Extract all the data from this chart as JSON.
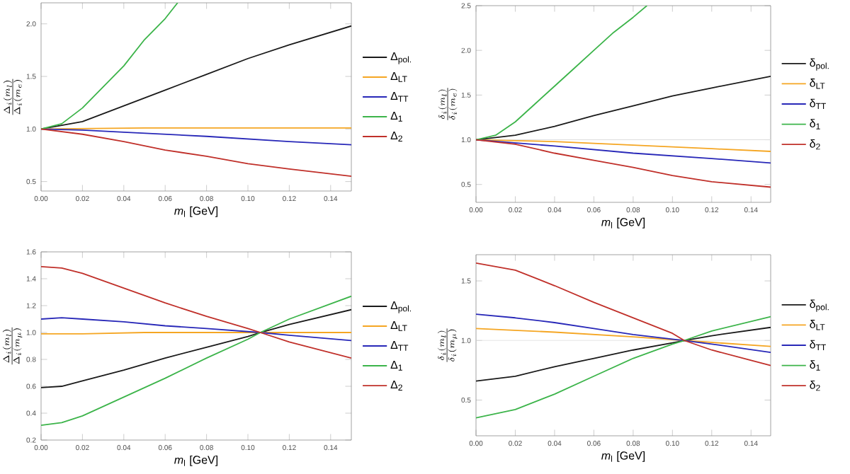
{
  "chart_data": [
    {
      "type": "line",
      "xlabel": "*m*$_{l}$ [GeV]",
      "ylabel": "\\frac{\\Delta_i(m_l)}{\\Delta_i(m_e)}",
      "legend": "right",
      "grid": false,
      "marker": "none",
      "line_style": "solid",
      "xlim": [
        0,
        0.15
      ],
      "ylim": [
        0.41,
        2.2
      ],
      "xticks": [
        {
          "value": 0,
          "label": "0.00"
        },
        {
          "value": 0.02,
          "label": "0.02"
        },
        {
          "value": 0.04,
          "label": "0.04"
        },
        {
          "value": 0.06,
          "label": "0.06"
        },
        {
          "value": 0.08,
          "label": "0.08"
        },
        {
          "value": 0.1,
          "label": "0.10"
        },
        {
          "value": 0.12,
          "label": "0.12"
        },
        {
          "value": 0.14,
          "label": "0.14"
        }
      ],
      "yticks": [
        {
          "value": 0.5,
          "label": "0.5"
        },
        {
          "value": 1,
          "label": "1.0"
        },
        {
          "value": 1.5,
          "label": "1.5"
        },
        {
          "value": 2,
          "label": "2.0"
        }
      ],
      "series": [
        {
          "name": "Δ$_{pol.}$",
          "color": "#1a1a1a",
          "x": [
            0,
            0.02,
            0.04,
            0.06,
            0.08,
            0.1,
            0.12,
            0.15
          ],
          "values": [
            1.0,
            1.07,
            1.22,
            1.37,
            1.52,
            1.67,
            1.8,
            1.98
          ]
        },
        {
          "name": "Δ$_{LT}$",
          "color": "#f5a623",
          "x": [
            0,
            0.05,
            0.1,
            0.15
          ],
          "values": [
            1.0,
            1.01,
            1.01,
            1.01
          ]
        },
        {
          "name": "Δ$_{TT}$",
          "color": "#2828b8",
          "x": [
            0,
            0.02,
            0.04,
            0.08,
            0.12,
            0.15
          ],
          "values": [
            1.0,
            0.99,
            0.97,
            0.93,
            0.88,
            0.85
          ]
        },
        {
          "name": "Δ$_{1}$",
          "color": "#3cb44a",
          "x": [
            0,
            0.01,
            0.02,
            0.03,
            0.04,
            0.05,
            0.06,
            0.066
          ],
          "values": [
            1.0,
            1.05,
            1.2,
            1.4,
            1.6,
            1.85,
            2.05,
            2.2
          ]
        },
        {
          "name": "Δ$_{2}$",
          "color": "#c0302a",
          "x": [
            0,
            0.02,
            0.04,
            0.06,
            0.08,
            0.1,
            0.12,
            0.15
          ],
          "values": [
            1.0,
            0.95,
            0.88,
            0.8,
            0.74,
            0.67,
            0.62,
            0.55
          ]
        }
      ]
    },
    {
      "type": "line",
      "xlabel": "*m*$_{l}$ [GeV]",
      "ylabel": "\\frac{\\delta_i(m_l)}{\\delta_i(m_e)}",
      "legend": "right",
      "grid": false,
      "marker": "none",
      "line_style": "solid",
      "xlim": [
        0,
        0.15
      ],
      "ylim": [
        0.3,
        2.5
      ],
      "xticks": [
        {
          "value": 0,
          "label": "0.00"
        },
        {
          "value": 0.02,
          "label": "0.02"
        },
        {
          "value": 0.04,
          "label": "0.04"
        },
        {
          "value": 0.06,
          "label": "0.06"
        },
        {
          "value": 0.08,
          "label": "0.08"
        },
        {
          "value": 0.1,
          "label": "0.10"
        },
        {
          "value": 0.12,
          "label": "0.12"
        },
        {
          "value": 0.14,
          "label": "0.14"
        }
      ],
      "yticks": [
        {
          "value": 0.5,
          "label": "0.5"
        },
        {
          "value": 1,
          "label": "1.0"
        },
        {
          "value": 1.5,
          "label": "1.5"
        },
        {
          "value": 2,
          "label": "2.0"
        },
        {
          "value": 2.5,
          "label": "2.5"
        }
      ],
      "ref_lines": [
        {
          "axis": "y",
          "value": 1,
          "color": "#dddddd"
        }
      ],
      "series": [
        {
          "name": "δ$_{pol.}$",
          "color": "#1a1a1a",
          "x": [
            0,
            0.02,
            0.04,
            0.06,
            0.08,
            0.1,
            0.12,
            0.15
          ],
          "values": [
            1.0,
            1.05,
            1.15,
            1.27,
            1.38,
            1.49,
            1.58,
            1.71
          ]
        },
        {
          "name": "δ$_{LT}$",
          "color": "#f5a623",
          "x": [
            0,
            0.04,
            0.08,
            0.12,
            0.15
          ],
          "values": [
            1.0,
            0.98,
            0.94,
            0.9,
            0.87
          ]
        },
        {
          "name": "δ$_{TT}$",
          "color": "#2828b8",
          "x": [
            0,
            0.04,
            0.08,
            0.12,
            0.15
          ],
          "values": [
            1.0,
            0.93,
            0.85,
            0.79,
            0.74
          ]
        },
        {
          "name": "δ$_{1}$",
          "color": "#3cb44a",
          "x": [
            0,
            0.01,
            0.02,
            0.03,
            0.04,
            0.05,
            0.06,
            0.07,
            0.08,
            0.087
          ],
          "values": [
            1.0,
            1.05,
            1.2,
            1.4,
            1.6,
            1.8,
            2.0,
            2.2,
            2.37,
            2.5
          ]
        },
        {
          "name": "δ$_{2}$",
          "color": "#c0302a",
          "x": [
            0,
            0.02,
            0.04,
            0.06,
            0.08,
            0.1,
            0.12,
            0.15
          ],
          "values": [
            1.0,
            0.95,
            0.85,
            0.77,
            0.69,
            0.6,
            0.53,
            0.47
          ]
        }
      ]
    },
    {
      "type": "line",
      "xlabel": "*m*$_{l}$ [GeV]",
      "ylabel": "\\frac{\\Delta_i(m_l)}{\\Delta_i(m_\\mu)}",
      "legend": "right",
      "grid": false,
      "marker": "none",
      "line_style": "solid",
      "xlim": [
        0,
        0.15
      ],
      "ylim": [
        0.2,
        1.6
      ],
      "xticks": [
        {
          "value": 0,
          "label": "0.00"
        },
        {
          "value": 0.02,
          "label": "0.02"
        },
        {
          "value": 0.04,
          "label": "0.04"
        },
        {
          "value": 0.06,
          "label": "0.06"
        },
        {
          "value": 0.08,
          "label": "0.08"
        },
        {
          "value": 0.1,
          "label": "0.10"
        },
        {
          "value": 0.12,
          "label": "0.12"
        },
        {
          "value": 0.14,
          "label": "0.14"
        }
      ],
      "yticks": [
        0.2,
        0.4,
        0.6,
        0.8,
        {
          "value": 1,
          "label": "1.0"
        },
        1.2,
        1.4,
        1.6
      ],
      "series": [
        {
          "name": "Δ$_{pol.}$",
          "color": "#1a1a1a",
          "x": [
            0,
            0.01,
            0.02,
            0.04,
            0.06,
            0.08,
            0.1,
            0.106,
            0.12,
            0.15
          ],
          "values": [
            0.59,
            0.6,
            0.64,
            0.72,
            0.81,
            0.89,
            0.97,
            1.0,
            1.06,
            1.17
          ]
        },
        {
          "name": "Δ$_{LT}$",
          "color": "#f5a623",
          "x": [
            0,
            0.02,
            0.05,
            0.106,
            0.15
          ],
          "values": [
            0.99,
            0.99,
            1.0,
            1.0,
            1.0
          ]
        },
        {
          "name": "Δ$_{TT}$",
          "color": "#2828b8",
          "x": [
            0,
            0.01,
            0.02,
            0.04,
            0.06,
            0.08,
            0.106,
            0.12,
            0.15
          ],
          "values": [
            1.1,
            1.11,
            1.1,
            1.08,
            1.05,
            1.03,
            1.0,
            0.98,
            0.94
          ]
        },
        {
          "name": "Δ$_{1}$",
          "color": "#3cb44a",
          "x": [
            0,
            0.01,
            0.02,
            0.04,
            0.06,
            0.08,
            0.1,
            0.106,
            0.12,
            0.15
          ],
          "values": [
            0.31,
            0.33,
            0.38,
            0.52,
            0.66,
            0.81,
            0.95,
            1.0,
            1.1,
            1.27
          ]
        },
        {
          "name": "Δ$_{2}$",
          "color": "#c0302a",
          "x": [
            0,
            0.01,
            0.02,
            0.04,
            0.06,
            0.08,
            0.1,
            0.106,
            0.12,
            0.15
          ],
          "values": [
            1.49,
            1.48,
            1.44,
            1.33,
            1.22,
            1.12,
            1.03,
            1.0,
            0.93,
            0.81
          ]
        }
      ]
    },
    {
      "type": "line",
      "xlabel": "*m*$_{l}$ [GeV]",
      "ylabel": "\\frac{\\delta_i(m_l)}{\\delta_i(m_\\mu)}",
      "legend": "right",
      "grid": false,
      "marker": "none",
      "line_style": "solid",
      "xlim": [
        0,
        0.15
      ],
      "ylim": [
        0.2,
        1.72
      ],
      "xticks": [
        {
          "value": 0,
          "label": "0.00"
        },
        {
          "value": 0.02,
          "label": "0.02"
        },
        {
          "value": 0.04,
          "label": "0.04"
        },
        {
          "value": 0.06,
          "label": "0.06"
        },
        {
          "value": 0.08,
          "label": "0.08"
        },
        {
          "value": 0.1,
          "label": "0.10"
        },
        {
          "value": 0.12,
          "label": "0.12"
        },
        {
          "value": 0.14,
          "label": "0.14"
        }
      ],
      "yticks": [
        {
          "value": 0.5,
          "label": "0.5"
        },
        {
          "value": 1,
          "label": "1.0"
        },
        {
          "value": 1.5,
          "label": "1.5"
        }
      ],
      "ref_lines": [
        {
          "axis": "y",
          "value": 1,
          "color": "#dddddd"
        }
      ],
      "series": [
        {
          "name": "δ$_{pol.}$",
          "color": "#1a1a1a",
          "x": [
            0,
            0.02,
            0.04,
            0.06,
            0.08,
            0.1,
            0.106,
            0.12,
            0.15
          ],
          "values": [
            0.66,
            0.7,
            0.78,
            0.85,
            0.92,
            0.98,
            1.0,
            1.04,
            1.11
          ]
        },
        {
          "name": "δ$_{LT}$",
          "color": "#f5a623",
          "x": [
            0,
            0.04,
            0.08,
            0.106,
            0.15
          ],
          "values": [
            1.1,
            1.07,
            1.03,
            1.0,
            0.95
          ]
        },
        {
          "name": "δ$_{TT}$",
          "color": "#2828b8",
          "x": [
            0,
            0.02,
            0.04,
            0.06,
            0.08,
            0.106,
            0.12,
            0.15
          ],
          "values": [
            1.22,
            1.19,
            1.15,
            1.1,
            1.05,
            1.0,
            0.97,
            0.9
          ]
        },
        {
          "name": "δ$_{1}$",
          "color": "#3cb44a",
          "x": [
            0,
            0.02,
            0.04,
            0.06,
            0.08,
            0.1,
            0.106,
            0.12,
            0.15
          ],
          "values": [
            0.35,
            0.42,
            0.55,
            0.7,
            0.85,
            0.97,
            1.0,
            1.08,
            1.2
          ]
        },
        {
          "name": "δ$_{2}$",
          "color": "#c0302a",
          "x": [
            0,
            0.02,
            0.04,
            0.06,
            0.08,
            0.1,
            0.106,
            0.12,
            0.15
          ],
          "values": [
            1.65,
            1.59,
            1.46,
            1.32,
            1.19,
            1.06,
            1.0,
            0.92,
            0.79
          ]
        }
      ]
    }
  ]
}
